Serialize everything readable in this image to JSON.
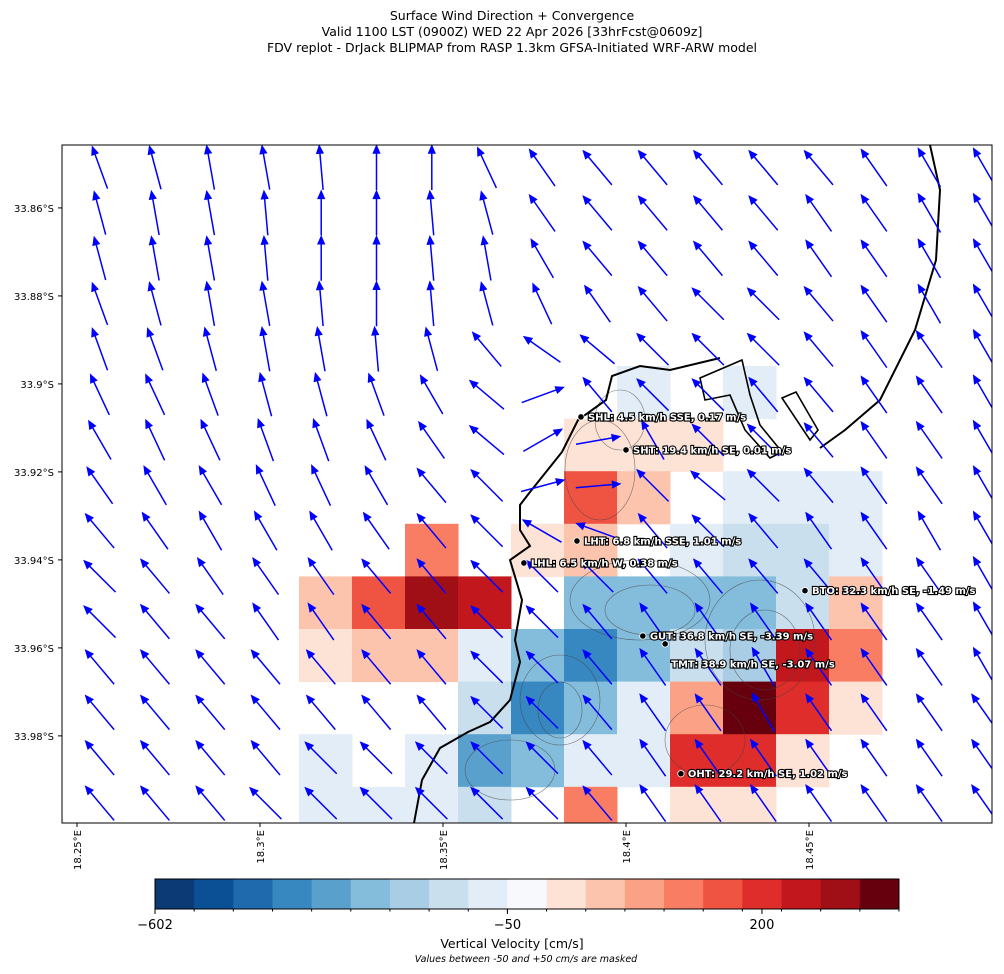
{
  "chart_data": {
    "type": "wind-convergence-map",
    "title": [
      "Surface Wind Direction + Convergence",
      "Valid 1100 LST (0900Z) WED 22 Apr 2026 [33hrFcst@0609z]",
      "FDV replot - DrJack BLIPMAP from RASP 1.3km GFSA-Initiated WRF-ARW model"
    ],
    "xlim": [
      18.2459,
      18.5
    ],
    "ylim": [
      33.8457,
      33.9998
    ],
    "xticks": [
      {
        "value": 18.25,
        "label": "18.25°E"
      },
      {
        "value": 18.3,
        "label": "18.3°E"
      },
      {
        "value": 18.35,
        "label": "18.35°E"
      },
      {
        "value": 18.4,
        "label": "18.4°E"
      },
      {
        "value": 18.45,
        "label": "18.45°E"
      }
    ],
    "yticks": [
      {
        "value": 33.86,
        "label": "33.86°S"
      },
      {
        "value": 33.88,
        "label": "33.88°S"
      },
      {
        "value": 33.9,
        "label": "33.9°S"
      },
      {
        "value": 33.92,
        "label": "33.92°S"
      },
      {
        "value": 33.94,
        "label": "33.94°S"
      },
      {
        "value": 33.96,
        "label": "33.96°S"
      },
      {
        "value": 33.98,
        "label": "33.98°S"
      }
    ],
    "vertical_velocity": [
      [
        null,
        null,
        null,
        null,
        null,
        null,
        -80,
        null,
        -80,
        null,
        null
      ],
      [
        null,
        null,
        null,
        null,
        null,
        60,
        60,
        60,
        null,
        null,
        null
      ],
      [
        null,
        null,
        null,
        null,
        null,
        180,
        100,
        null,
        -80,
        -80,
        -80
      ],
      [
        null,
        null,
        150,
        null,
        60,
        100,
        null,
        -80,
        -140,
        -140,
        -80
      ],
      [
        90,
        170,
        280,
        230,
        null,
        -300,
        -300,
        -300,
        -250,
        -150,
        100
      ],
      [
        60,
        90,
        90,
        -70,
        -300,
        -420,
        -250,
        -180,
        -200,
        230,
        150
      ],
      [
        null,
        null,
        null,
        -150,
        -420,
        -300,
        -120,
        110,
        350,
        200,
        60
      ],
      [
        -70,
        null,
        -120,
        -350,
        -280,
        -80,
        -70,
        210,
        200,
        60,
        null
      ],
      [
        -70,
        -70,
        -70,
        -150,
        null,
        150,
        null,
        60,
        60,
        null,
        null
      ]
    ],
    "wind_heading_deg": [
      [
        -20,
        -15,
        -10,
        -10,
        -5,
        0,
        0,
        -25,
        -35,
        -40,
        -40,
        -40,
        -40,
        -40,
        -35,
        -30,
        -30
      ],
      [
        -15,
        -10,
        -10,
        -5,
        0,
        0,
        -5,
        -15,
        -35,
        -40,
        -40,
        -40,
        -40,
        -35,
        -35,
        -30,
        -30
      ],
      [
        -15,
        -10,
        -10,
        -5,
        0,
        0,
        -5,
        -10,
        -30,
        -40,
        -40,
        -40,
        -40,
        -35,
        -35,
        -30,
        -30
      ],
      [
        -20,
        -15,
        -10,
        -10,
        -5,
        0,
        -5,
        -15,
        -25,
        -35,
        -40,
        -45,
        -45,
        -40,
        -35,
        -30,
        -30
      ],
      [
        -20,
        -20,
        -15,
        -10,
        -10,
        -5,
        -15,
        -40,
        -55,
        -50,
        -45,
        -45,
        -45,
        -40,
        -35,
        -35,
        -30
      ],
      [
        -25,
        -25,
        -20,
        -15,
        -15,
        -20,
        -30,
        -50,
        70,
        -40,
        -45,
        -45,
        -40,
        -40,
        -35,
        -35,
        -30
      ],
      [
        -30,
        -25,
        -25,
        -20,
        -20,
        -25,
        -35,
        -50,
        60,
        80,
        -30,
        -45,
        -45,
        -40,
        -35,
        -35,
        -30
      ],
      [
        -35,
        -30,
        -30,
        -25,
        -25,
        -30,
        -40,
        -45,
        75,
        85,
        -45,
        -50,
        -45,
        -40,
        -35,
        -35,
        -30
      ],
      [
        -40,
        -35,
        -30,
        -30,
        -30,
        -35,
        -40,
        -45,
        -60,
        -70,
        -40,
        -45,
        -40,
        -35,
        -35,
        -30,
        -30
      ],
      [
        -45,
        -40,
        -35,
        -35,
        -35,
        -40,
        -40,
        -45,
        -45,
        -45,
        -40,
        -40,
        -40,
        -40,
        -35,
        -35,
        -30
      ],
      [
        -45,
        -40,
        -40,
        -35,
        -35,
        -40,
        -40,
        -45,
        -45,
        -40,
        -35,
        -35,
        -35,
        -35,
        -35,
        -35,
        -30
      ],
      [
        -40,
        -40,
        -40,
        -40,
        -40,
        -40,
        -40,
        -45,
        -45,
        -40,
        -35,
        -35,
        -30,
        -35,
        -35,
        -35,
        -30
      ],
      [
        -40,
        -40,
        -40,
        -40,
        -40,
        -40,
        -40,
        -45,
        -45,
        -40,
        -35,
        -35,
        -30,
        -35,
        -35,
        -35,
        -35
      ],
      [
        -40,
        -40,
        -40,
        -40,
        -45,
        -45,
        -45,
        -45,
        -45,
        -40,
        -35,
        -35,
        -35,
        -35,
        -35,
        -35,
        -35
      ],
      [
        -40,
        -40,
        -40,
        -45,
        -45,
        -45,
        -45,
        -45,
        -45,
        -40,
        -35,
        -35,
        -35,
        -35,
        -35,
        -35,
        -35
      ]
    ],
    "wind_color": "#0000ff",
    "stations": [
      {
        "label": "SHL: 4.5 km/h SSE, 0.17 m/s",
        "lon": 18.3877,
        "lat": 33.9075
      },
      {
        "label": "SHT: 19.4 km/h SE, 0.01 m/s",
        "lon": 18.4,
        "lat": 33.915
      },
      {
        "label": "LHT: 6.8 km/h SSE, 1.01 m/s",
        "lon": 18.3866,
        "lat": 33.9357
      },
      {
        "label": "LHL: 6.5 km/h W, 0.38 m/s",
        "lon": 18.3721,
        "lat": 33.9407
      },
      {
        "label": "BTO: 32.3 km/h SE, -1.49 m/s",
        "lon": 18.4489,
        "lat": 33.947
      },
      {
        "label": "GUT: 36.8 km/h SE, -3.39 m/s",
        "lon": 18.4046,
        "lat": 33.9573
      },
      {
        "label": "TMT: 38.9 km/h SE, -3.07 m/s",
        "lon": 18.4107,
        "lat": 33.9591
      },
      {
        "label": "OHT: 29.2 km/h SE, 1.02 m/s",
        "lon": 18.415,
        "lat": 33.9886
      }
    ],
    "colorbar": {
      "label": "Vertical Velocity [cm/s]",
      "note": "Values between -50 and +50 cm/s are masked",
      "levels": [
        -602,
        -540,
        -480,
        -420,
        -360,
        -300,
        -240,
        -180,
        -120,
        -50,
        50,
        80,
        110,
        140,
        170,
        185,
        215,
        250,
        300,
        350
      ],
      "colors": [
        "#0c3a75",
        "#0b4f95",
        "#1f6aad",
        "#3787c0",
        "#5aa0cc",
        "#84bcdb",
        "#a8cde4",
        "#cadfee",
        "#e3edf7",
        "#f7f9fd",
        "#fde2d6",
        "#fcc4ad",
        "#fba185",
        "#f87d63",
        "#ef5443",
        "#de2d2a",
        "#c2181d",
        "#a00f16",
        "#67000d"
      ],
      "ticks": [
        {
          "value": -602,
          "label": "−602"
        },
        {
          "value": -50,
          "label": "−50"
        },
        200
      ]
    }
  }
}
